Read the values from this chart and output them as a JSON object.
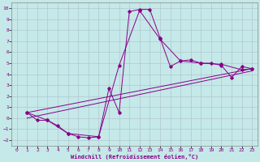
{
  "xlabel": "Windchill (Refroidissement éolien,°C)",
  "xlim": [
    -0.5,
    23.5
  ],
  "ylim": [
    -2.5,
    10.5
  ],
  "xticks": [
    0,
    1,
    2,
    3,
    4,
    5,
    6,
    7,
    8,
    9,
    10,
    11,
    12,
    13,
    14,
    15,
    16,
    17,
    18,
    19,
    20,
    21,
    22,
    23
  ],
  "yticks": [
    -2,
    -1,
    0,
    1,
    2,
    3,
    4,
    5,
    6,
    7,
    8,
    9,
    10
  ],
  "bg_color": "#c5e8e8",
  "line_color": "#880088",
  "grid_color": "#b0c8d0",
  "curve1_x": [
    1,
    2,
    3,
    4,
    5,
    6,
    7,
    8,
    9,
    10,
    11,
    12,
    13,
    14,
    15,
    16,
    17,
    18,
    19,
    20,
    21,
    22,
    23
  ],
  "curve1_y": [
    0.5,
    -0.2,
    -0.2,
    -0.7,
    -1.4,
    -1.7,
    -1.8,
    -1.7,
    2.7,
    0.5,
    9.7,
    9.9,
    9.9,
    7.3,
    4.7,
    5.2,
    5.3,
    5.0,
    5.0,
    4.8,
    3.7,
    4.7,
    4.5
  ],
  "curve2_x": [
    1,
    3,
    5,
    8,
    10,
    12,
    14,
    16,
    18,
    20,
    22,
    23
  ],
  "curve2_y": [
    0.5,
    -0.2,
    -1.4,
    -1.7,
    4.8,
    9.8,
    7.2,
    5.2,
    5.0,
    4.9,
    4.4,
    4.5
  ],
  "line3_x": [
    1,
    23
  ],
  "line3_y": [
    0.5,
    4.5
  ],
  "line4_x": [
    1,
    23
  ],
  "line4_y": [
    0.0,
    4.3
  ]
}
